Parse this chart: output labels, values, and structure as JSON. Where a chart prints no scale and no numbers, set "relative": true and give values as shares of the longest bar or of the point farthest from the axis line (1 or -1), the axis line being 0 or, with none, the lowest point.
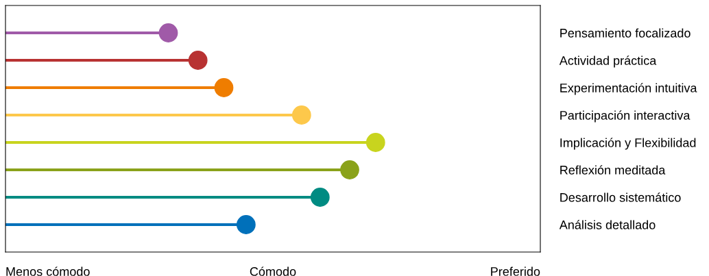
{
  "chart_data": {
    "type": "lollipop",
    "orientation": "horizontal",
    "relative": true,
    "categories": [
      "Pensamiento focalizado",
      "Actividad práctica",
      "Experimentación intuitiva",
      "Participación interactiva",
      "Implicación y Flexibilidad",
      "Reflexión meditada",
      "Desarrollo sistemático",
      "Análisis detallado"
    ],
    "values": [
      0.44,
      0.52,
      0.59,
      0.8,
      1,
      0.93,
      0.85,
      0.65
    ],
    "colors": [
      "#a05aa8",
      "#b83232",
      "#ef7d00",
      "#fdc84b",
      "#c8d41e",
      "#8aa21a",
      "#008b82",
      "#0070ba"
    ],
    "annotations": [
      "Menos cómodo",
      "Cómodo",
      "Preferido"
    ],
    "marker": "circle"
  }
}
